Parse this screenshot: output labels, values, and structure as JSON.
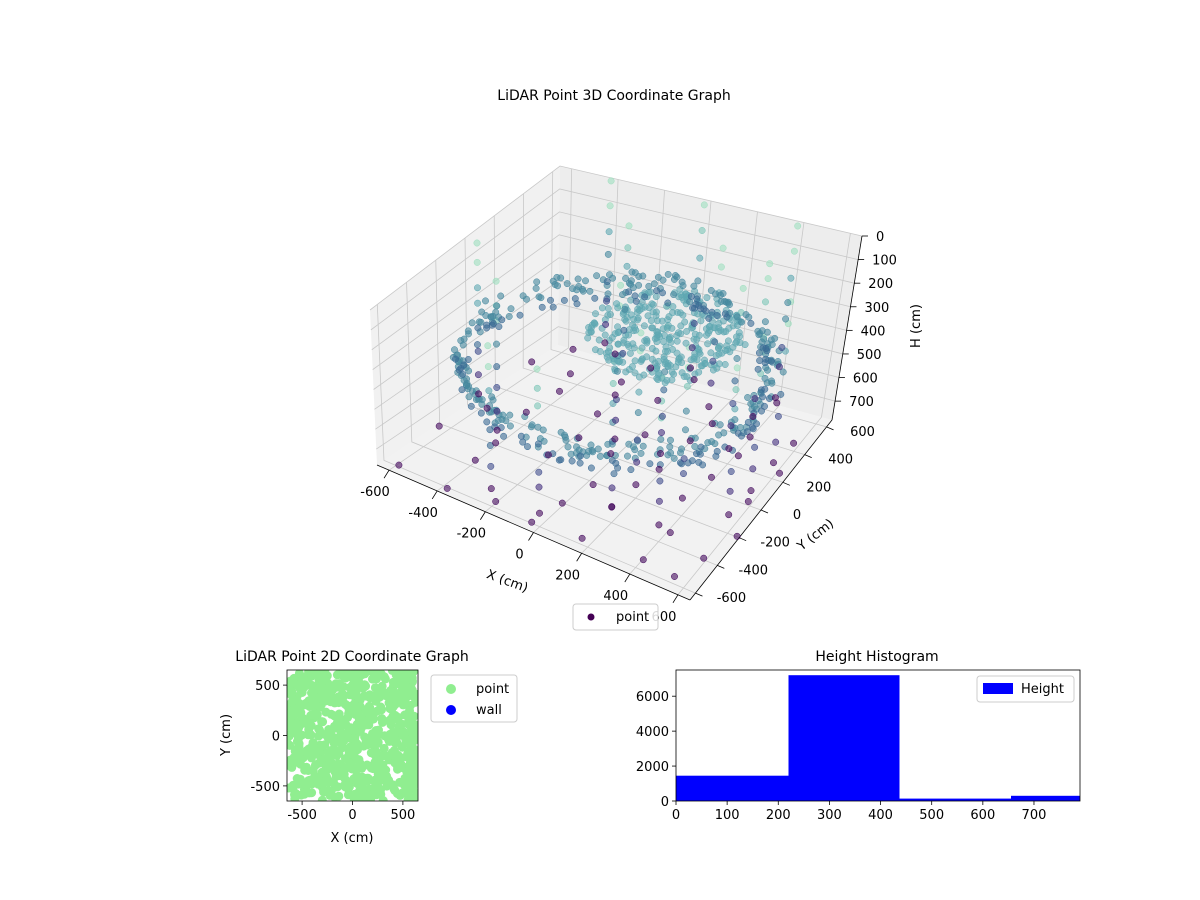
{
  "chart_data": [
    {
      "type": "scatter",
      "projection": "3d",
      "title": "LiDAR Point 3D Coordinate Graph",
      "xlabel": "X (cm)",
      "ylabel": "Y (cm)",
      "zlabel": "H (cm)",
      "xlim": [
        -650,
        650
      ],
      "ylim": [
        -650,
        650
      ],
      "zlim": [
        0,
        780
      ],
      "z_inverted": true,
      "xticks": [
        -600,
        -400,
        -200,
        0,
        200,
        400,
        600
      ],
      "yticks": [
        -600,
        -400,
        -200,
        0,
        200,
        400,
        600
      ],
      "zticks": [
        0,
        100,
        200,
        300,
        400,
        500,
        600,
        700
      ],
      "colormap": "viridis",
      "grid": true,
      "legend": {
        "position": "bottom-center",
        "entries": [
          "point"
        ]
      },
      "series": [
        {
          "name": "point",
          "color": "#440154",
          "structures": [
            {
              "kind": "ring",
              "radius": 600,
              "z_range": [
                300,
                430
              ]
            },
            {
              "kind": "disk",
              "center": [
                150,
                100
              ],
              "radius": 300,
              "z": 210
            },
            {
              "kind": "floor_grid",
              "z": 780,
              "spacing": 200
            },
            {
              "kind": "vertical_columns",
              "z_range": [
                0,
                700
              ],
              "spacing": 200
            }
          ]
        }
      ]
    },
    {
      "type": "scatter",
      "title": "LiDAR Point 2D Coordinate Graph",
      "xlabel": "X (cm)",
      "ylabel": "Y (cm)",
      "xlim": [
        -650,
        650
      ],
      "ylim": [
        -650,
        650
      ],
      "xticks": [
        -500,
        0,
        500
      ],
      "yticks": [
        -500,
        0,
        500
      ],
      "legend": {
        "position": "outside-right",
        "entries": [
          "point",
          "wall"
        ]
      },
      "series": [
        {
          "name": "point",
          "color": "#90ee90",
          "region": {
            "kind": "dense_disk",
            "radius": 650
          }
        },
        {
          "name": "wall",
          "color": "#0000ff",
          "region": {
            "kind": "none"
          }
        }
      ]
    },
    {
      "type": "bar",
      "subtype": "histogram",
      "title": "Height Histogram",
      "xlim": [
        0,
        790
      ],
      "ylim": [
        0,
        7500
      ],
      "xticks": [
        0,
        100,
        200,
        300,
        400,
        500,
        600,
        700
      ],
      "yticks": [
        0,
        2000,
        4000,
        6000
      ],
      "legend": {
        "position": "top-right",
        "entries": [
          "Height"
        ]
      },
      "series": [
        {
          "name": "Height",
          "color": "#0000ff",
          "bins": [
            0,
            220,
            437,
            655,
            790
          ],
          "values": [
            1450,
            7200,
            140,
            300
          ]
        }
      ]
    }
  ]
}
